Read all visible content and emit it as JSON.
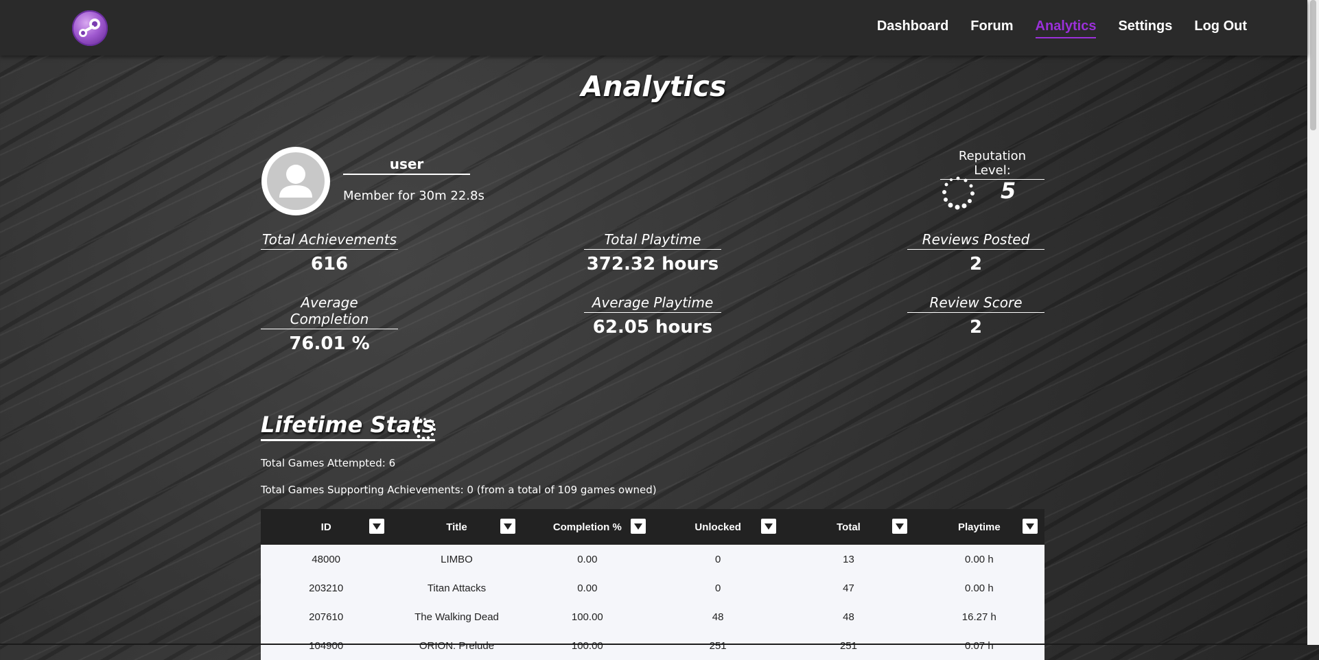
{
  "nav": {
    "logo_icon": "steam-logo-icon",
    "links": [
      "Dashboard",
      "Forum",
      "Analytics",
      "Settings",
      "Log Out"
    ],
    "active": "Analytics",
    "accent": "#9b30d9"
  },
  "page": {
    "title": "Analytics"
  },
  "profile": {
    "username": "user",
    "member_since": "Member for 30m 22.8s",
    "reputation_label": "Reputation Level:",
    "reputation_value": "5"
  },
  "stats": {
    "total_achievements": {
      "label": "Total Achievements",
      "value": "616"
    },
    "total_playtime": {
      "label": "Total Playtime",
      "value": "372.32 hours"
    },
    "reviews_posted": {
      "label": "Reviews Posted",
      "value": "2"
    },
    "average_completion": {
      "label": "Average Completion",
      "value": "76.01 %"
    },
    "average_playtime": {
      "label": "Average Playtime",
      "value": "62.05 hours"
    },
    "review_score": {
      "label": "Review Score",
      "value": "2"
    }
  },
  "lifetime": {
    "title": "Lifetime Stats",
    "games_attempted": "Total Games Attempted: 6",
    "games_supporting": "Total Games Supporting Achievements: 0 (from a total of 109 games owned)"
  },
  "table": {
    "columns": [
      "ID",
      "Title",
      "Completion %",
      "Unlocked",
      "Total",
      "Playtime"
    ],
    "rows": [
      [
        "48000",
        "LIMBO",
        "0.00",
        "0",
        "13",
        "0.00 h"
      ],
      [
        "203210",
        "Titan Attacks",
        "0.00",
        "0",
        "47",
        "0.00 h"
      ],
      [
        "207610",
        "The Walking Dead",
        "100.00",
        "48",
        "48",
        "16.27 h"
      ],
      [
        "104900",
        "ORION: Prelude",
        "100.00",
        "251",
        "251",
        "0.07 h"
      ]
    ]
  }
}
